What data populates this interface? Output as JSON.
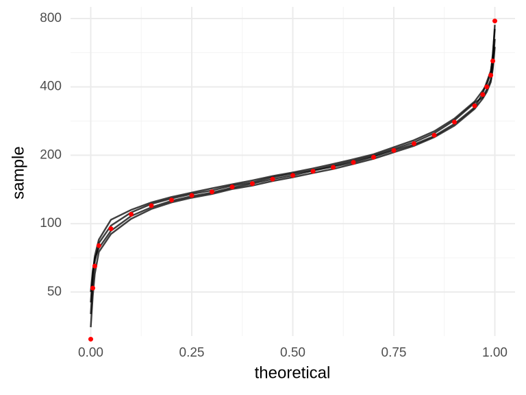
{
  "chart_data": {
    "type": "line",
    "x_label": "theoretical",
    "y_label": "sample",
    "ylog": true,
    "grid": true,
    "xlim": [
      -0.05,
      1.05
    ],
    "ylim": [
      32,
      900
    ],
    "xticks": [
      {
        "value": 0,
        "label": "0.00"
      },
      {
        "value": 0.25,
        "label": "0.25"
      },
      {
        "value": 0.5,
        "label": "0.50"
      },
      {
        "value": 0.75,
        "label": "0.75"
      },
      {
        "value": 1,
        "label": "1.00"
      }
    ],
    "yticks": [
      50,
      100,
      200,
      400,
      800
    ],
    "x": [
      0,
      0.005,
      0.01,
      0.02,
      0.05,
      0.1,
      0.15,
      0.2,
      0.25,
      0.3,
      0.35,
      0.4,
      0.45,
      0.5,
      0.55,
      0.6,
      0.65,
      0.7,
      0.75,
      0.8,
      0.85,
      0.9,
      0.95,
      0.97,
      0.98,
      0.99,
      0.995,
      1.0
    ],
    "series": [
      {
        "color": "#000000",
        "marker": "line",
        "values": [
          45,
          60,
          72,
          85,
          104,
          115,
          124,
          131,
          137,
          143,
          149,
          155,
          162,
          168,
          175,
          183,
          192,
          202,
          217,
          233,
          255,
          290,
          345,
          385,
          410,
          460,
          560,
          720
        ]
      },
      {
        "color": "#000000",
        "marker": "line",
        "values": [
          35,
          48,
          60,
          75,
          90,
          105,
          116,
          124,
          130,
          135,
          142,
          147,
          154,
          160,
          167,
          174,
          183,
          193,
          206,
          220,
          240,
          270,
          320,
          355,
          380,
          420,
          480,
          600
        ]
      },
      {
        "color": "#000000",
        "marker": "line",
        "values": [
          40,
          55,
          68,
          82,
          98,
          112,
          122,
          129,
          135,
          140,
          147,
          152,
          160,
          166,
          172,
          180,
          189,
          199,
          213,
          228,
          250,
          285,
          340,
          360,
          390,
          430,
          500,
          650
        ]
      },
      {
        "color": "#000000",
        "marker": "line",
        "values": [
          50,
          62,
          70,
          78,
          93,
          108,
          118,
          126,
          132,
          137,
          144,
          150,
          157,
          163,
          171,
          178,
          186,
          197,
          210,
          223,
          243,
          275,
          325,
          375,
          420,
          470,
          540,
          750
        ]
      },
      {
        "color": "#ff0000",
        "marker": "point",
        "values": [
          31,
          52,
          65,
          80,
          95,
          110,
          120,
          127,
          133,
          138,
          145,
          150,
          157,
          163,
          170,
          177,
          186,
          196,
          210,
          225,
          245,
          280,
          330,
          370,
          400,
          450,
          520,
          780
        ]
      }
    ]
  }
}
